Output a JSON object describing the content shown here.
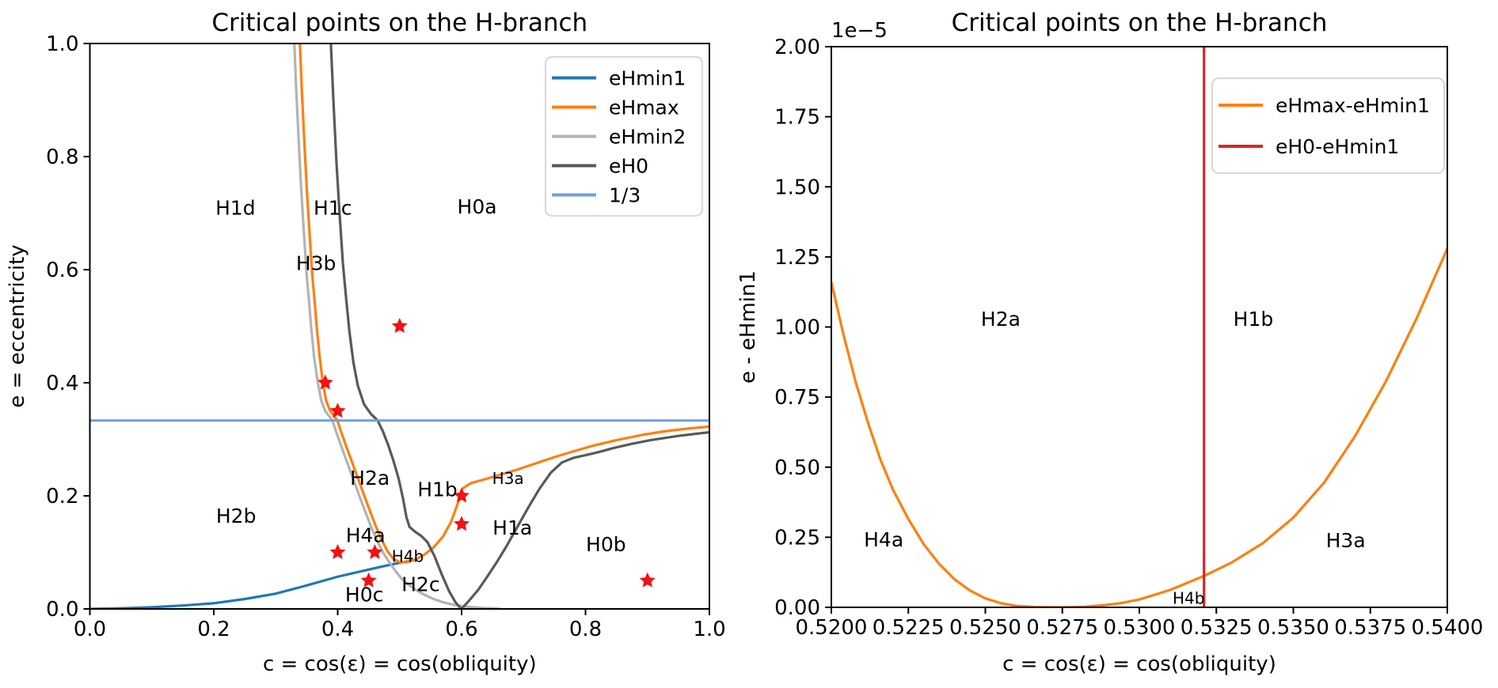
{
  "figure": {
    "background": "#ffffff"
  },
  "chart_data": [
    {
      "type": "line",
      "title": "Critical points on the H-branch",
      "xlabel": "c = cos(ε) = cos(obliquity)",
      "ylabel": "e = eccentricity",
      "xlim": [
        0.0,
        1.0
      ],
      "ylim": [
        0.0,
        1.0
      ],
      "grid": false,
      "legend_position": "upper right",
      "xticks": [
        {
          "v": 0.0,
          "label": "0.0"
        },
        {
          "v": 0.2,
          "label": "0.2"
        },
        {
          "v": 0.4,
          "label": "0.4"
        },
        {
          "v": 0.6,
          "label": "0.6"
        },
        {
          "v": 0.8,
          "label": "0.8"
        },
        {
          "v": 1.0,
          "label": "1.0"
        }
      ],
      "yticks": [
        {
          "v": 0.0,
          "label": "0.0"
        },
        {
          "v": 0.2,
          "label": "0.2"
        },
        {
          "v": 0.4,
          "label": "0.4"
        },
        {
          "v": 0.6,
          "label": "0.6"
        },
        {
          "v": 0.8,
          "label": "0.8"
        },
        {
          "v": 1.0,
          "label": "1.0"
        }
      ],
      "legend": [
        {
          "label": "eHmin1",
          "color": "#1f77b4"
        },
        {
          "label": "eHmax",
          "color": "#ff7f0e"
        },
        {
          "label": "eHmin2",
          "color": "#b3b3b3"
        },
        {
          "label": "eH0",
          "color": "#595959"
        },
        {
          "label": "1/3",
          "color": "#6fa1d8"
        }
      ],
      "series": [
        {
          "name": "eHmin1",
          "color": "#1f77b4",
          "lw": 3.2,
          "points": [
            [
              0.0,
              0.0
            ],
            [
              0.05,
              0.001
            ],
            [
              0.1,
              0.003
            ],
            [
              0.15,
              0.006
            ],
            [
              0.2,
              0.01
            ],
            [
              0.25,
              0.0175
            ],
            [
              0.3,
              0.027
            ],
            [
              0.35,
              0.0415
            ],
            [
              0.4,
              0.057
            ],
            [
              0.44,
              0.067
            ],
            [
              0.47,
              0.0745
            ],
            [
              0.5,
              0.0815
            ],
            [
              0.515,
              0.0846
            ],
            [
              0.5265,
              0.0876
            ]
          ]
        },
        {
          "name": "eHmax",
          "color": "#ff7f0e",
          "lw": 3.2,
          "points": [
            [
              0.339,
              1.0
            ],
            [
              0.342,
              0.92
            ],
            [
              0.346,
              0.83
            ],
            [
              0.35,
              0.745
            ],
            [
              0.3545,
              0.665
            ],
            [
              0.359,
              0.59
            ],
            [
              0.3635,
              0.535
            ],
            [
              0.366,
              0.5
            ],
            [
              0.371,
              0.445
            ],
            [
              0.376,
              0.4
            ],
            [
              0.3815,
              0.368
            ],
            [
              0.388,
              0.35
            ],
            [
              0.3995,
              0.3333
            ],
            [
              0.404,
              0.318
            ],
            [
              0.413,
              0.29
            ],
            [
              0.423,
              0.26
            ],
            [
              0.433,
              0.23
            ],
            [
              0.443,
              0.2
            ],
            [
              0.4525,
              0.172
            ],
            [
              0.462,
              0.145
            ],
            [
              0.4715,
              0.121
            ],
            [
              0.481,
              0.101
            ],
            [
              0.49,
              0.0885
            ],
            [
              0.5,
              0.0828
            ],
            [
              0.512,
              0.0826
            ],
            [
              0.5265,
              0.0878
            ],
            [
              0.54,
              0.0962
            ],
            [
              0.555,
              0.109
            ],
            [
              0.57,
              0.128
            ],
            [
              0.583,
              0.154
            ],
            [
              0.593,
              0.184
            ],
            [
              0.601,
              0.2125
            ],
            [
              0.615,
              0.2225
            ],
            [
              0.635,
              0.2285
            ],
            [
              0.66,
              0.2365
            ],
            [
              0.69,
              0.2465
            ],
            [
              0.72,
              0.2575
            ],
            [
              0.75,
              0.2685
            ],
            [
              0.78,
              0.2785
            ],
            [
              0.81,
              0.288
            ],
            [
              0.85,
              0.2985
            ],
            [
              0.89,
              0.3075
            ],
            [
              0.93,
              0.3145
            ],
            [
              0.97,
              0.3195
            ],
            [
              1.0,
              0.3225
            ]
          ]
        },
        {
          "name": "eHmin2",
          "color": "#b3b3b3",
          "lw": 3.2,
          "points": [
            [
              0.33,
              1.0
            ],
            [
              0.333,
              0.92
            ],
            [
              0.337,
              0.83
            ],
            [
              0.341,
              0.745
            ],
            [
              0.3455,
              0.665
            ],
            [
              0.35,
              0.59
            ],
            [
              0.3545,
              0.535
            ],
            [
              0.357,
              0.5
            ],
            [
              0.362,
              0.445
            ],
            [
              0.368,
              0.4
            ],
            [
              0.3735,
              0.368
            ],
            [
              0.38,
              0.35
            ],
            [
              0.3915,
              0.3333
            ],
            [
              0.396,
              0.318
            ],
            [
              0.405,
              0.29
            ],
            [
              0.415,
              0.26
            ],
            [
              0.425,
              0.23
            ],
            [
              0.435,
              0.2
            ],
            [
              0.4445,
              0.172
            ],
            [
              0.454,
              0.145
            ],
            [
              0.4635,
              0.121
            ],
            [
              0.473,
              0.1
            ],
            [
              0.4835,
              0.082
            ],
            [
              0.494,
              0.066
            ],
            [
              0.504,
              0.0525
            ],
            [
              0.515,
              0.0425
            ],
            [
              0.5265,
              0.0335
            ],
            [
              0.54,
              0.025
            ],
            [
              0.5555,
              0.0172
            ],
            [
              0.57,
              0.0118
            ],
            [
              0.59,
              0.0066
            ],
            [
              0.612,
              0.0035
            ],
            [
              0.636,
              0.0016
            ],
            [
              0.66,
              0.0008
            ]
          ]
        },
        {
          "name": "eH0",
          "color": "#595959",
          "lw": 3.2,
          "points": [
            [
              0.389,
              1.0
            ],
            [
              0.3935,
              0.89
            ],
            [
              0.398,
              0.79
            ],
            [
              0.403,
              0.7
            ],
            [
              0.4085,
              0.61
            ],
            [
              0.414,
              0.545
            ],
            [
              0.419,
              0.49
            ],
            [
              0.4255,
              0.435
            ],
            [
              0.4325,
              0.395
            ],
            [
              0.4425,
              0.362
            ],
            [
              0.4535,
              0.345
            ],
            [
              0.4645,
              0.3333
            ],
            [
              0.473,
              0.314
            ],
            [
              0.4815,
              0.29
            ],
            [
              0.49,
              0.262
            ],
            [
              0.4985,
              0.23
            ],
            [
              0.5055,
              0.195
            ],
            [
              0.511,
              0.162
            ],
            [
              0.516,
              0.145
            ],
            [
              0.525,
              0.1365
            ],
            [
              0.535,
              0.129
            ],
            [
              0.545,
              0.118
            ],
            [
              0.556,
              0.094
            ],
            [
              0.568,
              0.061
            ],
            [
              0.58,
              0.031
            ],
            [
              0.59,
              0.012
            ],
            [
              0.599,
              0.0005
            ],
            [
              0.602,
              0.0025
            ],
            [
              0.612,
              0.0145
            ],
            [
              0.627,
              0.034
            ],
            [
              0.642,
              0.058
            ],
            [
              0.657,
              0.083
            ],
            [
              0.672,
              0.11
            ],
            [
              0.69,
              0.145
            ],
            [
              0.708,
              0.18
            ],
            [
              0.726,
              0.213
            ],
            [
              0.744,
              0.241
            ],
            [
              0.762,
              0.259
            ],
            [
              0.78,
              0.267
            ],
            [
              0.8,
              0.272
            ],
            [
              0.82,
              0.277
            ],
            [
              0.845,
              0.2845
            ],
            [
              0.875,
              0.292
            ],
            [
              0.905,
              0.2985
            ],
            [
              0.95,
              0.306
            ],
            [
              1.0,
              0.3125
            ]
          ]
        },
        {
          "name": "1/3",
          "color": "#6fa1d8",
          "lw": 3.0,
          "points": [
            [
              0.0,
              0.3333
            ],
            [
              1.0,
              0.3333
            ]
          ]
        }
      ],
      "scatter": {
        "name": "critical-points",
        "marker": "star",
        "color": "#f31111",
        "points": [
          [
            0.38,
            0.4
          ],
          [
            0.4,
            0.35
          ],
          [
            0.5,
            0.5
          ],
          [
            0.6,
            0.2
          ],
          [
            0.6,
            0.15
          ],
          [
            0.4,
            0.1
          ],
          [
            0.46,
            0.1
          ],
          [
            0.45,
            0.05
          ],
          [
            0.9,
            0.05
          ]
        ]
      },
      "annotations": [
        {
          "text": "H1d",
          "x": 0.235,
          "y": 0.71,
          "small": false
        },
        {
          "text": "H1c",
          "x": 0.392,
          "y": 0.71,
          "small": false
        },
        {
          "text": "H0a",
          "x": 0.625,
          "y": 0.712,
          "small": false
        },
        {
          "text": "H3b",
          "x": 0.365,
          "y": 0.612,
          "small": false
        },
        {
          "text": "H2a",
          "x": 0.452,
          "y": 0.232,
          "small": false
        },
        {
          "text": "H1b",
          "x": 0.561,
          "y": 0.212,
          "small": false
        },
        {
          "text": "H3a",
          "x": 0.675,
          "y": 0.231,
          "small": true
        },
        {
          "text": "H1a",
          "x": 0.682,
          "y": 0.144,
          "small": false
        },
        {
          "text": "H2b",
          "x": 0.236,
          "y": 0.165,
          "small": false
        },
        {
          "text": "H4a",
          "x": 0.445,
          "y": 0.131,
          "small": false
        },
        {
          "text": "H4b",
          "x": 0.513,
          "y": 0.093,
          "small": true
        },
        {
          "text": "H2c",
          "x": 0.534,
          "y": 0.044,
          "small": false
        },
        {
          "text": "H0c",
          "x": 0.443,
          "y": 0.026,
          "small": false
        },
        {
          "text": "H0b",
          "x": 0.833,
          "y": 0.115,
          "small": false
        }
      ]
    },
    {
      "type": "line",
      "title": "Critical points on the H-branch",
      "xlabel": "c = cos(ε) = cos(obliquity)",
      "ylabel": "e - eHmin1",
      "offset_text": "1e−5",
      "xlim": [
        0.52,
        0.54
      ],
      "ylim": [
        0.0,
        2.0
      ],
      "grid": false,
      "legend_position": "upper right",
      "xticks": [
        {
          "v": 0.52,
          "label": "0.5200"
        },
        {
          "v": 0.5225,
          "label": "0.5225"
        },
        {
          "v": 0.525,
          "label": "0.5250"
        },
        {
          "v": 0.5275,
          "label": "0.5275"
        },
        {
          "v": 0.53,
          "label": "0.5300"
        },
        {
          "v": 0.5325,
          "label": "0.5325"
        },
        {
          "v": 0.535,
          "label": "0.5350"
        },
        {
          "v": 0.5375,
          "label": "0.5375"
        },
        {
          "v": 0.54,
          "label": "0.5400"
        }
      ],
      "yticks": [
        {
          "v": 0.0,
          "label": "0.00"
        },
        {
          "v": 0.25,
          "label": "0.25"
        },
        {
          "v": 0.5,
          "label": "0.50"
        },
        {
          "v": 0.75,
          "label": "0.75"
        },
        {
          "v": 1.0,
          "label": "1.00"
        },
        {
          "v": 1.25,
          "label": "1.25"
        },
        {
          "v": 1.5,
          "label": "1.50"
        },
        {
          "v": 1.75,
          "label": "1.75"
        },
        {
          "v": 2.0,
          "label": "2.00"
        }
      ],
      "legend": [
        {
          "label": "eHmax-eHmin1",
          "color": "#ff7f0e"
        },
        {
          "label": "eH0-eHmin1",
          "color": "#d62728"
        }
      ],
      "series": [
        {
          "name": "eHmax-eHmin1",
          "color": "#ff7f0e",
          "lw": 3.2,
          "points": [
            [
              0.52,
              1.16
            ],
            [
              0.5204,
              0.97
            ],
            [
              0.5208,
              0.8
            ],
            [
              0.5212,
              0.655
            ],
            [
              0.5216,
              0.525
            ],
            [
              0.522,
              0.42
            ],
            [
              0.5225,
              0.315
            ],
            [
              0.523,
              0.225
            ],
            [
              0.5235,
              0.155
            ],
            [
              0.524,
              0.1
            ],
            [
              0.5245,
              0.06
            ],
            [
              0.525,
              0.032
            ],
            [
              0.5255,
              0.015
            ],
            [
              0.526,
              0.005
            ],
            [
              0.5266,
              0.001
            ],
            [
              0.5274,
              0.0
            ],
            [
              0.5282,
              0.002
            ],
            [
              0.5288,
              0.007
            ],
            [
              0.5294,
              0.015
            ],
            [
              0.53,
              0.028
            ],
            [
              0.531,
              0.062
            ],
            [
              0.5321,
              0.112
            ],
            [
              0.533,
              0.16
            ],
            [
              0.534,
              0.228
            ],
            [
              0.535,
              0.32
            ],
            [
              0.536,
              0.445
            ],
            [
              0.537,
              0.61
            ],
            [
              0.538,
              0.805
            ],
            [
              0.539,
              1.03
            ],
            [
              0.54,
              1.28
            ]
          ]
        },
        {
          "name": "eH0-eHmin1",
          "color": "#d62728",
          "lw": 3.2,
          "points": [
            [
              0.5321,
              0.0
            ],
            [
              0.5321,
              2.0
            ]
          ]
        }
      ],
      "annotations": [
        {
          "text": "H2a",
          "x": 0.5255,
          "y": 1.03,
          "small": false
        },
        {
          "text": "H1b",
          "x": 0.5337,
          "y": 1.03,
          "small": false
        },
        {
          "text": "H4a",
          "x": 0.5217,
          "y": 0.242,
          "small": false
        },
        {
          "text": "H3a",
          "x": 0.5367,
          "y": 0.24,
          "small": false
        },
        {
          "text": "H4b",
          "x": 0.5316,
          "y": 0.032,
          "small": true
        }
      ]
    }
  ]
}
